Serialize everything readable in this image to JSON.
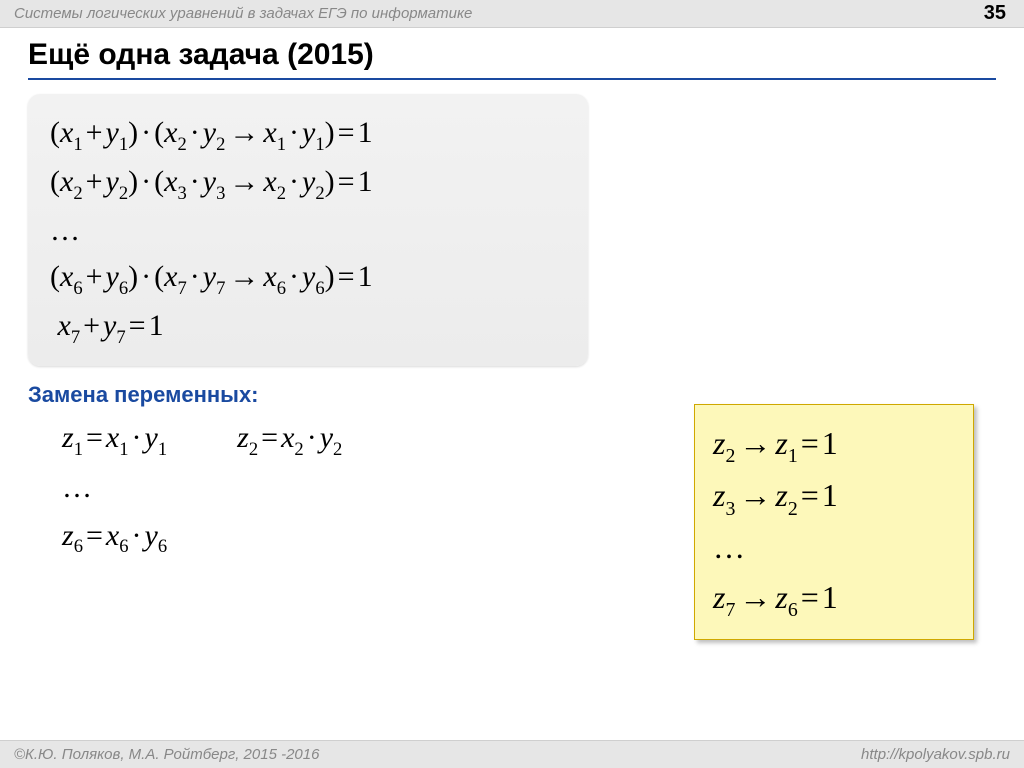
{
  "header": {
    "breadcrumb": "Системы логических уравнений в задачах ЕГЭ по информатике",
    "page_number": "35"
  },
  "title": "Ещё одна задача (2015)",
  "equations": {
    "line1": {
      "a": "1",
      "b": "1",
      "c": "2",
      "d": "2",
      "e": "1",
      "f": "1"
    },
    "line2": {
      "a": "2",
      "b": "2",
      "c": "3",
      "d": "3",
      "e": "2",
      "f": "2"
    },
    "ellipsis": "…",
    "line3": {
      "a": "6",
      "b": "6",
      "c": "7",
      "d": "7",
      "e": "6",
      "f": "6"
    },
    "last": {
      "a": "7",
      "b": "7"
    },
    "rhs": "1"
  },
  "substitution_title": "Замена переменных:",
  "subst": {
    "z1": {
      "z": "1",
      "x": "1",
      "y": "1"
    },
    "z2": {
      "z": "2",
      "x": "2",
      "y": "2"
    },
    "ellipsis": "…",
    "z6": {
      "z": "6",
      "x": "6",
      "y": "6"
    }
  },
  "yellow": {
    "l1": {
      "from": "2",
      "to": "1"
    },
    "l2": {
      "from": "3",
      "to": "2"
    },
    "ellipsis": "…",
    "l3": {
      "from": "7",
      "to": "6"
    },
    "rhs": "1"
  },
  "footer": {
    "left": "©К.Ю. Поляков, М.А. Ройтберг, 2015 -2016",
    "right": "http://kpolyakov.spb.ru"
  },
  "colors": {
    "accent": "#1a4aa0",
    "box_bg": "#f0f0f0",
    "yellow_bg": "#fdf8ba",
    "yellow_border": "#cfa800",
    "topbar_bg": "#e6e6e6",
    "muted_text": "#888888"
  }
}
